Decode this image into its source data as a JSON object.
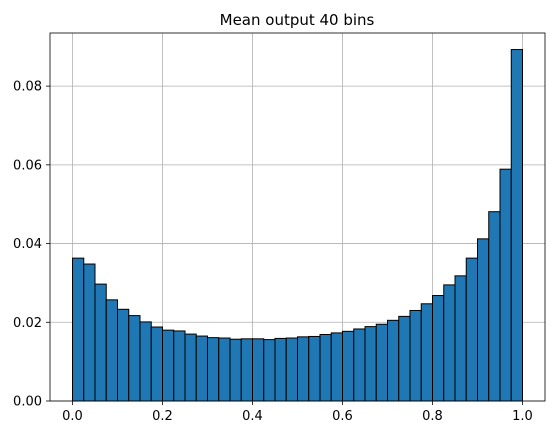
{
  "chart_data": {
    "type": "bar",
    "title": "Mean output 40 bins",
    "xlabel": "",
    "ylabel": "",
    "bin_start": 0.0,
    "bin_width": 0.025,
    "values": [
      0.0363,
      0.0348,
      0.0297,
      0.0257,
      0.0233,
      0.0217,
      0.0201,
      0.0188,
      0.018,
      0.0178,
      0.017,
      0.0165,
      0.0161,
      0.016,
      0.0157,
      0.0158,
      0.0158,
      0.0156,
      0.0159,
      0.016,
      0.0163,
      0.0164,
      0.0169,
      0.0173,
      0.0177,
      0.0183,
      0.0189,
      0.0195,
      0.0205,
      0.0215,
      0.023,
      0.0247,
      0.0268,
      0.0295,
      0.0318,
      0.0363,
      0.0412,
      0.0481,
      0.0589,
      0.0893
    ],
    "xlim": [
      -0.05,
      1.05
    ],
    "ylim": [
      0,
      0.0935
    ],
    "xticks": [
      0.0,
      0.2,
      0.4,
      0.6,
      0.8,
      1.0
    ],
    "xtick_labels": [
      "0.0",
      "0.2",
      "0.4",
      "0.6",
      "0.8",
      "1.0"
    ],
    "yticks": [
      0.0,
      0.02,
      0.04,
      0.06,
      0.08
    ],
    "ytick_labels": [
      "0.00",
      "0.02",
      "0.04",
      "0.06",
      "0.08"
    ],
    "grid": true,
    "bar_color": "#1f77b4",
    "edge_color": "#000000"
  }
}
